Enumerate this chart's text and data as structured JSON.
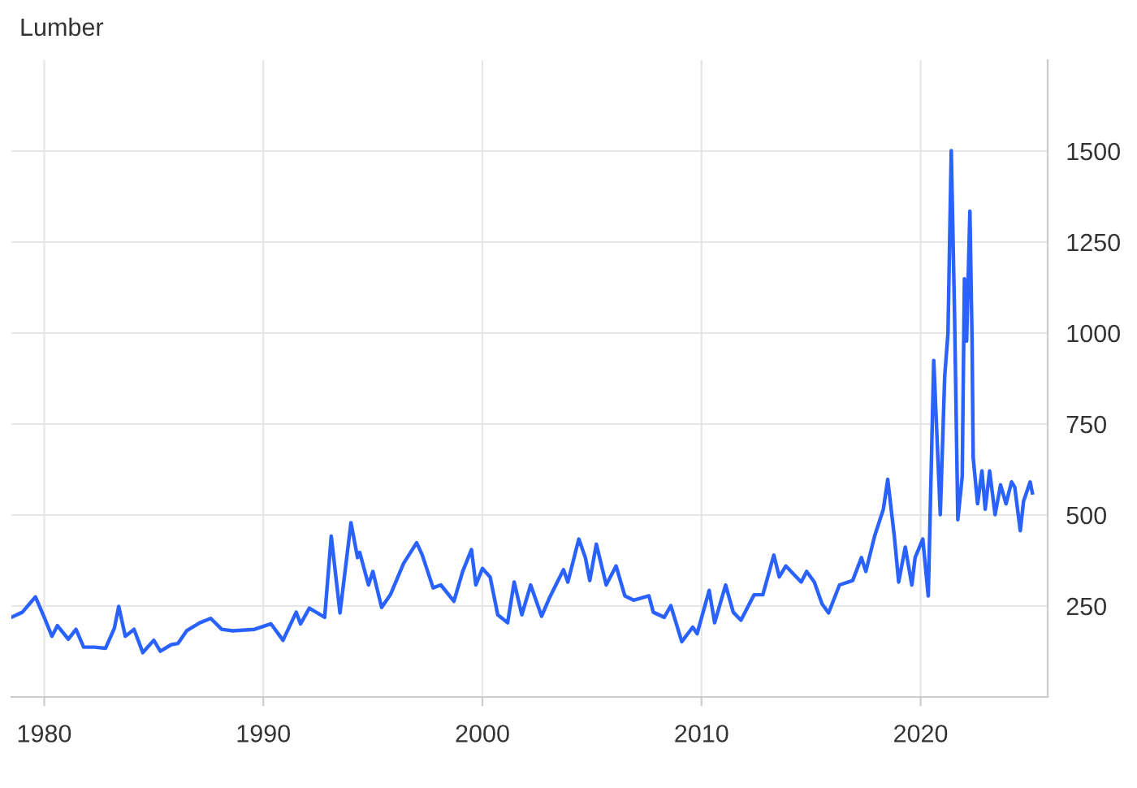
{
  "chart_data": {
    "type": "line",
    "title": "Lumber",
    "x": [
      1978.5,
      1979.0,
      1979.6,
      1980.0,
      1980.35,
      1980.6,
      1981.1,
      1981.45,
      1981.8,
      1982.3,
      1982.8,
      1983.2,
      1983.4,
      1983.7,
      1984.1,
      1984.5,
      1985.0,
      1985.3,
      1985.8,
      1986.1,
      1986.5,
      1987.1,
      1987.6,
      1988.1,
      1988.6,
      1989.6,
      1990.35,
      1990.9,
      1991.5,
      1991.7,
      1992.1,
      1992.8,
      1993.1,
      1993.5,
      1994.0,
      1994.3,
      1994.4,
      1994.8,
      1995.0,
      1995.4,
      1995.8,
      1996.4,
      1997.0,
      1997.25,
      1997.75,
      1998.1,
      1998.7,
      1999.1,
      1999.5,
      1999.7,
      2000.0,
      2000.35,
      2000.7,
      2001.15,
      2001.45,
      2001.8,
      2002.2,
      2002.7,
      2003.05,
      2003.7,
      2003.9,
      2004.4,
      2004.7,
      2004.9,
      2005.2,
      2005.65,
      2006.1,
      2006.5,
      2006.9,
      2007.6,
      2007.8,
      2008.3,
      2008.6,
      2009.1,
      2009.6,
      2009.8,
      2010.35,
      2010.6,
      2011.1,
      2011.45,
      2011.8,
      2012.4,
      2012.8,
      2013.3,
      2013.55,
      2013.85,
      2014.55,
      2014.8,
      2015.15,
      2015.5,
      2015.8,
      2016.3,
      2016.9,
      2017.3,
      2017.5,
      2017.9,
      2018.3,
      2018.5,
      2018.8,
      2019.0,
      2019.3,
      2019.6,
      2019.75,
      2020.1,
      2020.35,
      2020.6,
      2020.9,
      2021.1,
      2021.25,
      2021.4,
      2021.55,
      2021.7,
      2021.9,
      2022.0,
      2022.1,
      2022.25,
      2022.35,
      2022.4,
      2022.6,
      2022.8,
      2022.95,
      2023.15,
      2023.4,
      2023.65,
      2023.9,
      2024.15,
      2024.3,
      2024.55,
      2024.7,
      2025.0,
      2025.1
    ],
    "series": [
      {
        "color": "#2962ff",
        "values": [
          219,
          233,
          275,
          219,
          167,
          196,
          159,
          186,
          137,
          137,
          134,
          189,
          249,
          167,
          186,
          122,
          156,
          126,
          144,
          147,
          182,
          204,
          216,
          186,
          182,
          186,
          201,
          156,
          233,
          201,
          244,
          219,
          442,
          231,
          479,
          383,
          397,
          308,
          345,
          246,
          281,
          367,
          424,
          391,
          300,
          308,
          263,
          345,
          405,
          308,
          353,
          330,
          226,
          204,
          316,
          226,
          308,
          222,
          271,
          350,
          316,
          434,
          383,
          320,
          420,
          308,
          360,
          278,
          266,
          278,
          233,
          219,
          251,
          152,
          192,
          174,
          293,
          204,
          308,
          233,
          211,
          281,
          281,
          390,
          330,
          360,
          316,
          345,
          316,
          256,
          231,
          308,
          320,
          383,
          345,
          442,
          516,
          598,
          442,
          316,
          412,
          308,
          383,
          434,
          278,
          925,
          501,
          881,
          1000,
          1501,
          1052,
          487,
          606,
          1149,
          978,
          1335,
          978,
          658,
          531,
          621,
          516,
          621,
          501,
          583,
          531,
          591,
          576,
          457,
          538,
          591,
          561
        ]
      }
    ],
    "xlim": [
      1978.5,
      2025.8
    ],
    "xticks": [
      1980,
      1990,
      2000,
      2010,
      2020
    ],
    "ylim": [
      0,
      1750
    ],
    "yticks": [
      250,
      500,
      750,
      1000,
      1250,
      1500
    ],
    "grid": true,
    "legend": false,
    "marker": "none",
    "line_style": "solid"
  }
}
